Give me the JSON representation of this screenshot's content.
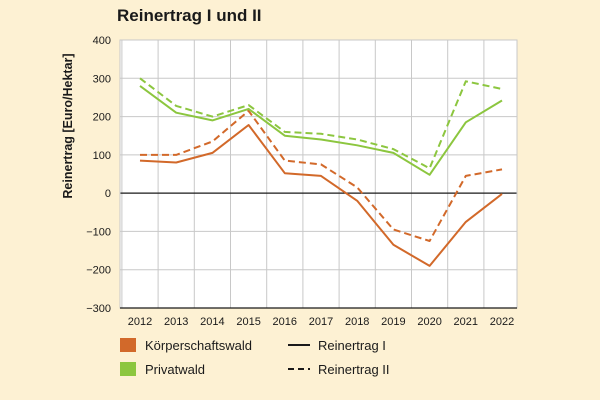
{
  "chart_data": {
    "type": "line",
    "title": "Reinertrag I und II",
    "ylabel": "Reinertrag [Euro/Hektar]",
    "xlabel": "",
    "ylim": [
      -300,
      400
    ],
    "yticks": [
      "400",
      "300",
      "200",
      "100",
      "0",
      "−100",
      "−200",
      "−300"
    ],
    "ytick_values": [
      400,
      300,
      200,
      100,
      0,
      -100,
      -200,
      -300
    ],
    "categories": [
      "2012",
      "2013",
      "2014",
      "2015",
      "2016",
      "2017",
      "2018",
      "2019",
      "2020",
      "2021",
      "2022"
    ],
    "grid": true,
    "legend_position": "bottom",
    "colors": {
      "koerperschaftswald": "#d2692a",
      "privatwald": "#8cc63f",
      "axis": "#1a1a1a",
      "plot_bg": "#ffffff",
      "grid": "#c8c8c8"
    },
    "series": [
      {
        "owner": "Körperschaftswald",
        "measure": "Reinertrag I",
        "style": "solid",
        "color": "#d2692a",
        "values": [
          85,
          80,
          105,
          178,
          52,
          45,
          -20,
          -135,
          -190,
          -75,
          -2
        ]
      },
      {
        "owner": "Körperschaftswald",
        "measure": "Reinertrag II",
        "style": "dashed",
        "color": "#d2692a",
        "values": [
          100,
          100,
          135,
          215,
          85,
          75,
          15,
          -95,
          -125,
          45,
          62
        ]
      },
      {
        "owner": "Privatwald",
        "measure": "Reinertrag I",
        "style": "solid",
        "color": "#8cc63f",
        "values": [
          280,
          210,
          190,
          220,
          150,
          140,
          125,
          105,
          48,
          185,
          242
        ]
      },
      {
        "owner": "Privatwald",
        "measure": "Reinertrag II",
        "style": "dashed",
        "color": "#8cc63f",
        "values": [
          300,
          228,
          200,
          230,
          160,
          155,
          140,
          115,
          65,
          292,
          272
        ]
      }
    ],
    "legend": {
      "owner_entries": [
        {
          "label": "Körperschaftswald",
          "color": "#d2692a"
        },
        {
          "label": "Privatwald",
          "color": "#8cc63f"
        }
      ],
      "style_entries": [
        {
          "label": "Reinertrag I",
          "style": "solid"
        },
        {
          "label": "Reinertrag II",
          "style": "dashed"
        }
      ]
    }
  }
}
